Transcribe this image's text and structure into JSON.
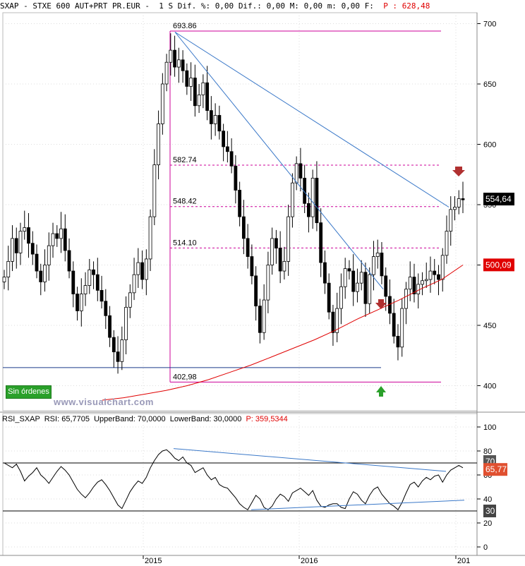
{
  "header": {
    "symbol": "SXAP",
    "name": "STXE 600 AUT+PRT PR.EUR",
    "period": "1 S",
    "dif_pct_label": "Dif. %:",
    "dif_pct": "0,00",
    "dif_label": "Dif.:",
    "dif": "0,00",
    "max_label": "M:",
    "max": "0,00",
    "min_label": "m:",
    "min": "0,00",
    "f_label": "F:",
    "price_label": "P :",
    "price": "628,48"
  },
  "price_badge": "554,64",
  "ma_badge": "500,09",
  "button": "Sin órdenes",
  "watermark": "www.visualchart.com",
  "rsi_header": {
    "name": "RSI_SXAP",
    "rsi_label": "RSI:",
    "rsi": "65,7705",
    "upper_label": "UpperBand:",
    "upper": "70,0000",
    "lower_label": "LowerBand:",
    "lower": "30,0000",
    "p_label": "P:",
    "p": "359,5344"
  },
  "rsi_badges": {
    "upper": "70",
    "value": "65,77",
    "lower": "30"
  },
  "colors": {
    "price_badge_bg": "#000000",
    "ma_badge_bg": "#e00000",
    "ma_line": "#e00000",
    "trendline": "#3a78c8",
    "fib_lines": "#cc0099",
    "arrow_down": "#b03030",
    "arrow_up": "#2aa02a",
    "rsi_value_bg": "#e05030"
  },
  "chart_data": [
    {
      "type": "candlestick",
      "title": "",
      "x_labels": [
        "2015",
        "2016",
        "201"
      ],
      "y_axis": {
        "ticks": [
          400,
          450,
          500,
          550,
          600,
          650,
          700
        ],
        "range": [
          380,
          702
        ]
      },
      "annotations": {
        "levels": [
          {
            "label": "693.86",
            "value": 693.86
          },
          {
            "label": "582.74",
            "value": 582.74
          },
          {
            "label": "548.42",
            "value": 548.42
          },
          {
            "label": "514.10",
            "value": 514.1
          },
          {
            "label": "402,98",
            "value": 402.98
          }
        ],
        "horizontal_support": 415
      },
      "series": [
        {
          "name": "",
          "kind": "weekly price (close)",
          "values": [
            490,
            503,
            522,
            510,
            528,
            531,
            518,
            509,
            495,
            486,
            500,
            516,
            526,
            522,
            530,
            512,
            495,
            476,
            462,
            476,
            483,
            496,
            492,
            479,
            470,
            458,
            440,
            428,
            420,
            438,
            465,
            477,
            492,
            502,
            488,
            505,
            540,
            583,
            617,
            650,
            668,
            678,
            664,
            670,
            661,
            648,
            655,
            632,
            641,
            651,
            628,
            617,
            624,
            611,
            598,
            594,
            582,
            562,
            540,
            522,
            507,
            491,
            466,
            444,
            471,
            500,
            522,
            514,
            495,
            503,
            540,
            568,
            584,
            572,
            551,
            540,
            572,
            535,
            502,
            485,
            461,
            444,
            464,
            482,
            497,
            495,
            478,
            485,
            494,
            468,
            492,
            507,
            510,
            491,
            474,
            460,
            441,
            432,
            464,
            480,
            490,
            476,
            484,
            487,
            488,
            495,
            492,
            488,
            508,
            528,
            546,
            548,
            555,
            554
          ]
        },
        {
          "name": "",
          "kind": "moving average",
          "values": [
            388,
            390,
            393,
            396,
            400,
            405,
            411,
            417,
            424,
            431,
            438,
            446,
            455,
            463,
            471,
            480,
            488,
            500
          ]
        }
      ]
    },
    {
      "type": "line",
      "title": "",
      "y_axis": {
        "ticks": [
          0,
          20,
          40,
          60,
          80,
          100
        ],
        "range": [
          0,
          100
        ]
      },
      "bands": [
        30,
        70
      ],
      "series": [
        {
          "name": "RSI_SXAP",
          "values": [
            70,
            68,
            66,
            69,
            63,
            55,
            59,
            62,
            66,
            60,
            57,
            53,
            58,
            63,
            67,
            64,
            60,
            54,
            48,
            44,
            41,
            45,
            50,
            54,
            56,
            52,
            47,
            41,
            35,
            32,
            39,
            46,
            51,
            55,
            53,
            58,
            66,
            72,
            77,
            80,
            81,
            78,
            74,
            72,
            75,
            70,
            68,
            62,
            64,
            66,
            60,
            56,
            58,
            52,
            50,
            49,
            45,
            41,
            36,
            33,
            31,
            37,
            43,
            40,
            33,
            31,
            34,
            40,
            44,
            42,
            38,
            45,
            47,
            49,
            46,
            43,
            47,
            39,
            34,
            33,
            35,
            36,
            36,
            33,
            32,
            40,
            46,
            44,
            39,
            36,
            43,
            48,
            50,
            44,
            40,
            36,
            34,
            31,
            37,
            45,
            52,
            54,
            50,
            55,
            58,
            56,
            59,
            60,
            54,
            60,
            64,
            66,
            68,
            66
          ]
        }
      ]
    }
  ]
}
